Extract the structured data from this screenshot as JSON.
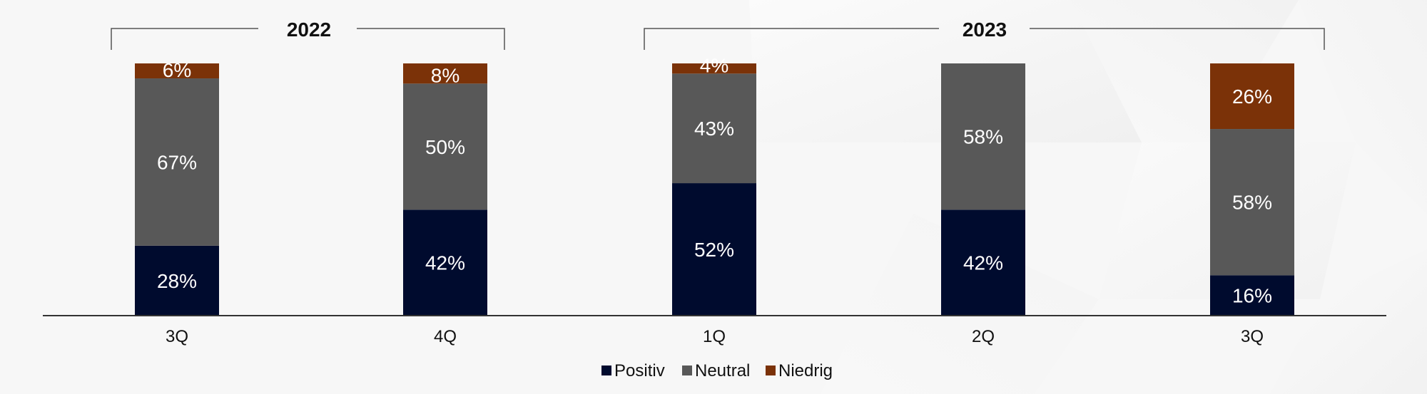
{
  "chart_data": {
    "type": "bar",
    "stacked": true,
    "normalized_percent": true,
    "categories": [
      "3Q",
      "4Q",
      "1Q",
      "2Q",
      "3Q"
    ],
    "groups": [
      {
        "label": "2022",
        "category_indices": [
          0,
          1
        ]
      },
      {
        "label": "2023",
        "category_indices": [
          2,
          3,
          4
        ]
      }
    ],
    "series": [
      {
        "name": "Positiv",
        "color": "#000b2e",
        "values": [
          28,
          42,
          52,
          42,
          16
        ],
        "labels": [
          "28%",
          "42%",
          "52%",
          "42%",
          "16%"
        ]
      },
      {
        "name": "Neutral",
        "color": "#585858",
        "values": [
          67,
          50,
          43,
          58,
          58
        ],
        "labels": [
          "67%",
          "50%",
          "43%",
          "58%",
          "58%"
        ]
      },
      {
        "name": "Niedrig",
        "color": "#7b3208",
        "values": [
          6,
          8,
          4,
          0,
          26
        ],
        "labels": [
          "6%",
          "8%",
          "4%",
          "",
          "26%"
        ]
      }
    ],
    "legend": {
      "position": "bottom-center"
    },
    "grid": false,
    "title": "",
    "xlabel": "",
    "ylabel": ""
  }
}
